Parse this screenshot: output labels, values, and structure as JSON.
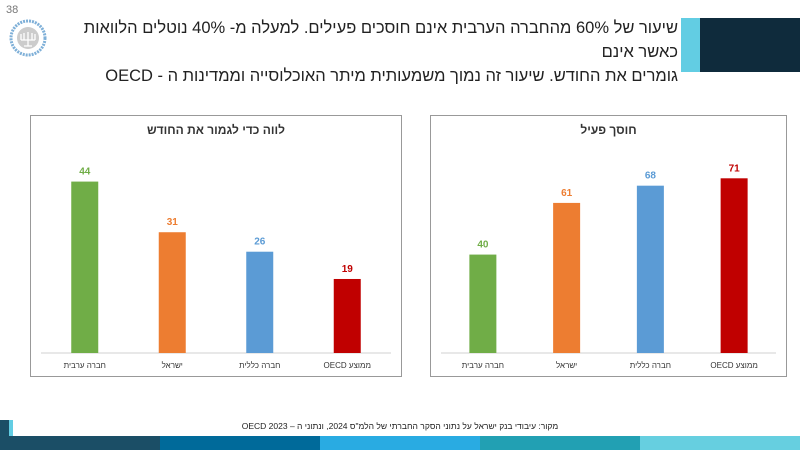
{
  "page_number": "38",
  "logo_text": "בנק ישראל BANK OF ISRAEL",
  "header": {
    "line1": "שיעור של 60% מהחברה הערבית אינם חוסכים פעילים. למעלה מ- 40% נוטלים הלוואות כאשר אינם",
    "line2": "גומרים את החודש. שיעור זה נמוך משמעותית מיתר האוכלוסייה וממדינות ה - OECD"
  },
  "source": "מקור: עיבודי בנק ישראל על נתוני הסקר החברתי של הלמ\"ס 2024, ונתוני ה – OECD 2023",
  "colors": {
    "green": "#70ad47",
    "orange": "#ed7d31",
    "blue": "#5b9bd5",
    "red": "#c00000"
  },
  "chart_data": [
    {
      "type": "bar",
      "title": "לווה כדי לגמור את החודש",
      "categories": [
        "חברה ערבית",
        "ישראל",
        "חברה כללית",
        "ממוצע OECD"
      ],
      "values": [
        44,
        31,
        26,
        19
      ],
      "colors": [
        "#70ad47",
        "#ed7d31",
        "#5b9bd5",
        "#c00000"
      ],
      "ylim": [
        0,
        48
      ],
      "grid": false
    },
    {
      "type": "bar",
      "title": "חוסך פעיל",
      "categories": [
        "חברה ערבית",
        "ישראל",
        "חברה כללית",
        "ממוצע OECD"
      ],
      "values": [
        40,
        61,
        68,
        71
      ],
      "colors": [
        "#70ad47",
        "#ed7d31",
        "#5b9bd5",
        "#c00000"
      ],
      "ylim": [
        0,
        76
      ],
      "grid": false
    }
  ]
}
